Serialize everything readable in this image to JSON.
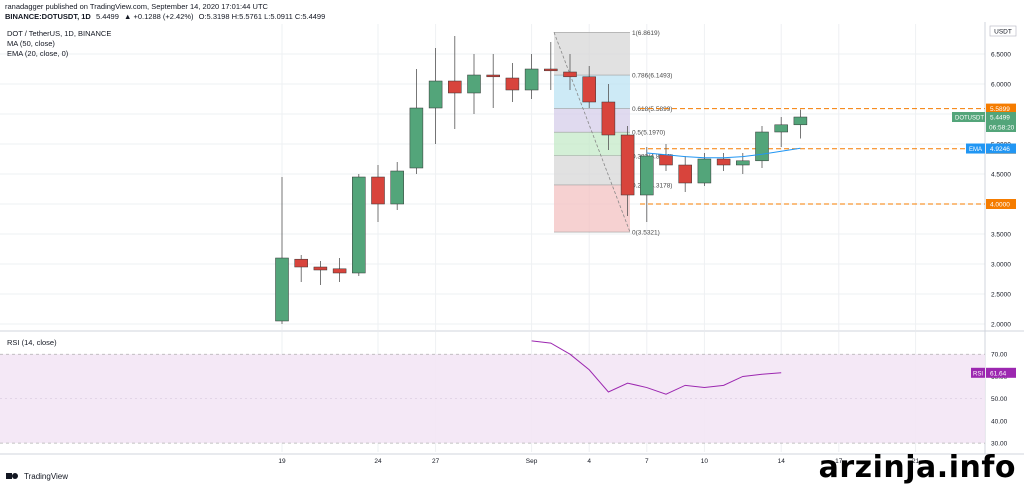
{
  "header": {
    "line1": "ranadagger published on TradingView.com, September 14, 2020 17:01:44 UTC",
    "line2_symbol": "BINANCE:DOTUSDT, 1D",
    "line2_price": "5.4499",
    "line2_change": "▲ +0.1288 (+2.42%)",
    "line2_ohlc": "O:5.3198 H:5.5761 L:5.0911 C:5.4499"
  },
  "legend": {
    "title": "DOT / TetherUS, 1D, BINANCE",
    "ma": "MA (50, close)",
    "ema": "EMA (20, close, 0)"
  },
  "rsi_legend": "RSI (14, close)",
  "branding": {
    "tradingview": "TradingView",
    "watermark": "arzinja.info"
  },
  "colors": {
    "up": "#53a57a",
    "down": "#d8443c",
    "ema": "#2196f3",
    "rsi": "#9c27b0",
    "level_line": "#f57c00"
  },
  "chart_data": [
    {
      "type": "candlestick",
      "title": "DOT / TetherUS, 1D, BINANCE",
      "currency_label": "USDT",
      "y_ticks": [
        2.0,
        2.5,
        3.0,
        3.5,
        4.0,
        4.5,
        5.0,
        5.5,
        6.0,
        6.5
      ],
      "ylim": [
        1.9,
        7.0
      ],
      "x_ticks": [
        {
          "i": 0,
          "label": "19"
        },
        {
          "i": 5,
          "label": "24"
        },
        {
          "i": 8,
          "label": "27"
        },
        {
          "i": 13,
          "label": "Sep"
        },
        {
          "i": 16,
          "label": "4"
        },
        {
          "i": 19,
          "label": "7"
        },
        {
          "i": 22,
          "label": "10"
        },
        {
          "i": 26,
          "label": "14"
        },
        {
          "i": 29,
          "label": "17"
        },
        {
          "i": 33,
          "label": "21"
        }
      ],
      "candles": [
        {
          "o": 2.05,
          "h": 4.45,
          "l": 2.0,
          "c": 3.1
        },
        {
          "o": 3.08,
          "h": 3.15,
          "l": 2.7,
          "c": 2.95
        },
        {
          "o": 2.95,
          "h": 3.05,
          "l": 2.65,
          "c": 2.9
        },
        {
          "o": 2.92,
          "h": 3.1,
          "l": 2.7,
          "c": 2.85
        },
        {
          "o": 2.85,
          "h": 4.5,
          "l": 2.8,
          "c": 4.45
        },
        {
          "o": 4.45,
          "h": 4.65,
          "l": 3.7,
          "c": 4.0
        },
        {
          "o": 4.0,
          "h": 4.7,
          "l": 3.9,
          "c": 4.55
        },
        {
          "o": 4.6,
          "h": 6.25,
          "l": 4.5,
          "c": 5.6
        },
        {
          "o": 5.6,
          "h": 6.6,
          "l": 5.0,
          "c": 6.05
        },
        {
          "o": 6.05,
          "h": 6.8,
          "l": 5.25,
          "c": 5.85
        },
        {
          "o": 5.85,
          "h": 6.5,
          "l": 5.5,
          "c": 6.15
        },
        {
          "o": 6.15,
          "h": 6.5,
          "l": 5.6,
          "c": 6.12
        },
        {
          "o": 6.1,
          "h": 6.35,
          "l": 5.7,
          "c": 5.9
        },
        {
          "o": 5.9,
          "h": 6.5,
          "l": 5.75,
          "c": 6.25
        },
        {
          "o": 6.25,
          "h": 6.7,
          "l": 5.9,
          "c": 6.22
        },
        {
          "o": 6.2,
          "h": 6.5,
          "l": 5.9,
          "c": 6.12
        },
        {
          "o": 6.12,
          "h": 6.3,
          "l": 5.6,
          "c": 5.7
        },
        {
          "o": 5.7,
          "h": 6.0,
          "l": 4.9,
          "c": 5.15
        },
        {
          "o": 5.15,
          "h": 5.3,
          "l": 3.8,
          "c": 4.15
        },
        {
          "o": 4.15,
          "h": 4.95,
          "l": 3.7,
          "c": 4.8
        },
        {
          "o": 4.82,
          "h": 5.0,
          "l": 4.55,
          "c": 4.65
        },
        {
          "o": 4.65,
          "h": 4.8,
          "l": 4.2,
          "c": 4.35
        },
        {
          "o": 4.35,
          "h": 4.85,
          "l": 4.3,
          "c": 4.75
        },
        {
          "o": 4.75,
          "h": 4.85,
          "l": 4.55,
          "c": 4.65
        },
        {
          "o": 4.65,
          "h": 4.85,
          "l": 4.5,
          "c": 4.72
        },
        {
          "o": 4.72,
          "h": 5.3,
          "l": 4.6,
          "c": 5.2
        },
        {
          "o": 5.2,
          "h": 5.45,
          "l": 4.95,
          "c": 5.32
        },
        {
          "o": 5.32,
          "h": 5.576,
          "l": 5.091,
          "c": 5.4499
        }
      ],
      "ema_points": [
        {
          "i": 19,
          "v": 4.85
        },
        {
          "i": 20,
          "v": 4.82
        },
        {
          "i": 21,
          "v": 4.79
        },
        {
          "i": 22,
          "v": 4.77
        },
        {
          "i": 23,
          "v": 4.77
        },
        {
          "i": 24,
          "v": 4.79
        },
        {
          "i": 25,
          "v": 4.83
        },
        {
          "i": 26,
          "v": 4.88
        },
        {
          "i": 27,
          "v": 4.93
        }
      ],
      "fib_levels": [
        {
          "value": 6.8619,
          "label": "1(6.8619)",
          "fill": ""
        },
        {
          "value": 6.1493,
          "label": "0.786(6.1493)",
          "fill": "#d7d7d7"
        },
        {
          "value": 5.5899,
          "label": "0.618(5.5899)",
          "fill": "#bce3f3"
        },
        {
          "value": 5.197,
          "label": "0.5(5.1970)",
          "fill": "#d6cdea"
        },
        {
          "value": 4.804,
          "label": "0.382(4.8040)",
          "fill": "#c4e9c8"
        },
        {
          "value": 4.3178,
          "label": "0.236(4.3178)",
          "fill": "#d7d7d7"
        },
        {
          "value": 3.5321,
          "label": "0(3.5321)",
          "fill": "#f3c1c1"
        }
      ],
      "horizontal_levels": [
        {
          "value": 5.5899,
          "label": "5.5899"
        },
        {
          "value": 4.921,
          "label": "4.9210"
        },
        {
          "value": 4.0,
          "label": "4.0000"
        }
      ],
      "price_tags": [
        {
          "value": 5.4499,
          "label": "DOTUSDT",
          "price": "5.4499",
          "countdown": "06:58:20"
        },
        {
          "value": 4.9246,
          "label": "EMA",
          "price": "4.9246"
        }
      ]
    },
    {
      "type": "line",
      "title": "RSI (14, close)",
      "series": [
        {
          "name": "RSI",
          "points": [
            {
              "i": 13,
              "v": 76
            },
            {
              "i": 14,
              "v": 75
            },
            {
              "i": 15,
              "v": 70
            },
            {
              "i": 16,
              "v": 63
            },
            {
              "i": 17,
              "v": 53
            },
            {
              "i": 18,
              "v": 57
            },
            {
              "i": 19,
              "v": 55
            },
            {
              "i": 20,
              "v": 52
            },
            {
              "i": 21,
              "v": 56
            },
            {
              "i": 22,
              "v": 55
            },
            {
              "i": 23,
              "v": 56
            },
            {
              "i": 24,
              "v": 60
            },
            {
              "i": 25,
              "v": 61
            },
            {
              "i": 26,
              "v": 61.64
            }
          ]
        }
      ],
      "y_ticks": [
        30,
        40,
        50,
        60,
        70
      ],
      "ylim": [
        26,
        80
      ],
      "band": [
        30,
        70
      ],
      "last_label": "RSI",
      "last_value": "61.64"
    }
  ]
}
